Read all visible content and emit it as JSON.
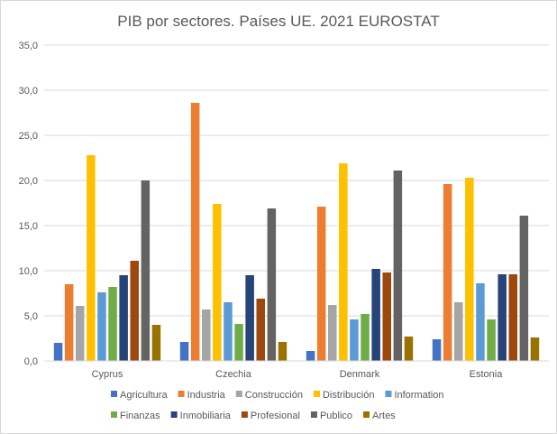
{
  "chart_data": {
    "type": "bar",
    "title": "PIB por sectores. Países UE. 2021 EUROSTAT",
    "xlabel": "",
    "ylabel": "",
    "ylim": [
      0,
      35
    ],
    "yticks": [
      "0,0",
      "5,0",
      "10,0",
      "15,0",
      "20,0",
      "25,0",
      "30,0",
      "35,0"
    ],
    "grid": true,
    "legend_position": "bottom",
    "categories": [
      "Cyprus",
      "Czechia",
      "Denmark",
      "Estonia"
    ],
    "series": [
      {
        "name": "Agricultura",
        "color": "#4472c4",
        "values": [
          2.0,
          2.1,
          1.1,
          2.4
        ]
      },
      {
        "name": "Industria",
        "color": "#ed7d31",
        "values": [
          8.5,
          28.6,
          17.1,
          19.6
        ]
      },
      {
        "name": "Construcción",
        "color": "#a5a5a5",
        "values": [
          6.1,
          5.7,
          6.2,
          6.5
        ]
      },
      {
        "name": "Distribución",
        "color": "#ffc000",
        "values": [
          22.8,
          17.4,
          21.9,
          20.3
        ]
      },
      {
        "name": "Information",
        "color": "#5b9bd5",
        "values": [
          7.6,
          6.5,
          4.6,
          8.6
        ]
      },
      {
        "name": "Finanzas",
        "color": "#70ad47",
        "values": [
          8.2,
          4.1,
          5.2,
          4.6
        ]
      },
      {
        "name": "Inmobiliaria",
        "color": "#264478",
        "values": [
          9.5,
          9.5,
          10.2,
          9.6
        ]
      },
      {
        "name": "Profesional",
        "color": "#9e480e",
        "values": [
          11.1,
          6.9,
          9.8,
          9.6
        ]
      },
      {
        "name": "Publico",
        "color": "#636363",
        "values": [
          20.0,
          16.9,
          21.1,
          16.1
        ]
      },
      {
        "name": "Artes",
        "color": "#997300",
        "values": [
          4.0,
          2.1,
          2.7,
          2.6
        ]
      }
    ]
  }
}
